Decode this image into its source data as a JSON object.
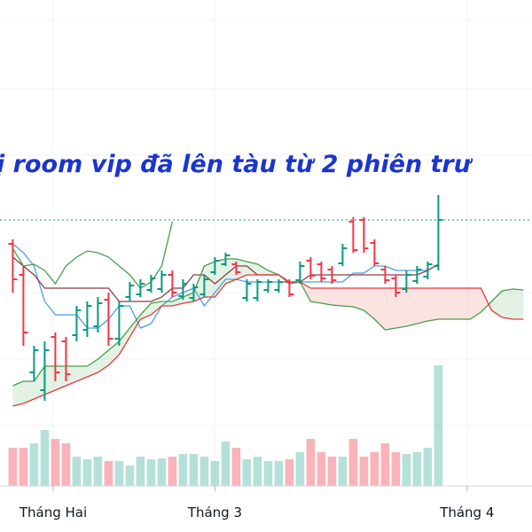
{
  "chart_data": {
    "type": "ohlc",
    "annotation": "ị room vip đã lên tàu từ 2 phiên trư",
    "xlim": [
      -1.2,
      48.8
    ],
    "xticks": [
      {
        "value": 3.8,
        "label": "Tháng Hai"
      },
      {
        "value": 19,
        "label": "Tháng 3"
      },
      {
        "value": 42.7,
        "label": "Tháng 4"
      }
    ],
    "ylim": [
      0,
      600
    ],
    "y2lim": [
      0,
      548
    ],
    "up_color": "#089981",
    "down_color": "#f23645",
    "price_line": 352,
    "price_line_color": "#089981",
    "open": [
      325,
      290,
      180,
      160,
      220,
      215,
      222,
      228,
      232,
      262,
      218,
      265,
      268,
      273,
      274,
      290,
      266,
      264,
      268,
      293,
      302,
      302,
      264,
      264,
      273,
      273,
      282,
      284,
      306,
      302,
      296,
      303,
      350,
      352,
      326,
      296,
      286,
      274,
      283,
      288,
      300
    ],
    "high": [
      330,
      300,
      210,
      215,
      225,
      220,
      255,
      260,
      265,
      270,
      260,
      282,
      285,
      290,
      295,
      295,
      285,
      280,
      290,
      310,
      315,
      305,
      285,
      285,
      285,
      285,
      285,
      305,
      310,
      305,
      300,
      325,
      355,
      355,
      330,
      300,
      290,
      295,
      300,
      305,
      380
    ],
    "low": [
      270,
      210,
      170,
      148,
      170,
      170,
      215,
      220,
      225,
      210,
      210,
      260,
      265,
      270,
      270,
      265,
      262,
      260,
      265,
      290,
      300,
      290,
      260,
      260,
      270,
      270,
      265,
      280,
      285,
      282,
      280,
      300,
      315,
      315,
      300,
      280,
      265,
      270,
      280,
      285,
      295
    ],
    "close": [
      285,
      225,
      205,
      205,
      180,
      178,
      250,
      255,
      258,
      218,
      255,
      278,
      280,
      286,
      290,
      270,
      280,
      276,
      285,
      306,
      312,
      293,
      280,
      282,
      282,
      282,
      268,
      300,
      289,
      286,
      284,
      320,
      318,
      320,
      303,
      284,
      270,
      290,
      296,
      302,
      352
    ],
    "volume": [
      43,
      43,
      48,
      63,
      53,
      48,
      33,
      30,
      33,
      28,
      28,
      23,
      33,
      30,
      31,
      33,
      36,
      36,
      33,
      28,
      50,
      43,
      30,
      33,
      28,
      28,
      30,
      38,
      53,
      38,
      33,
      33,
      53,
      33,
      38,
      48,
      38,
      36,
      38,
      43,
      136
    ],
    "series": [
      {
        "color": "#4a9fe0",
        "values": [
          325,
          315,
          300,
          260,
          245,
          245,
          245,
          230,
          230,
          240,
          255,
          255,
          230,
          235,
          255,
          265,
          270,
          275,
          255,
          270,
          285,
          285,
          282,
          282,
          282,
          282,
          282,
          282,
          282,
          282,
          282,
          282,
          292,
          292,
          300,
          300,
          295,
          295,
          295,
          295,
          302
        ]
      },
      {
        "color": "#8e3b46",
        "values": [
          310,
          300,
          290,
          275,
          275,
          275,
          275,
          275,
          275,
          275,
          260,
          260,
          260,
          260,
          265,
          275,
          275,
          290,
          290,
          280,
          290,
          300,
          300,
          290,
          290,
          290,
          282,
          282,
          290,
          290,
          290,
          290,
          290,
          290,
          290,
          290,
          290,
          290,
          290,
          295,
          302
        ]
      },
      {
        "color": "#43a047",
        "values": [
          165,
          170,
          170,
          187,
          187,
          187,
          187,
          187,
          195,
          205,
          215,
          230,
          245,
          258,
          260,
          260,
          265,
          270,
          300,
          305,
          308,
          308,
          305,
          302,
          295,
          290,
          280,
          282,
          260,
          258,
          256,
          255,
          254,
          250,
          240,
          228,
          230,
          232,
          235,
          238,
          240,
          240,
          240,
          240,
          248,
          260,
          272,
          274,
          273
        ]
      },
      {
        "color": "#e53935",
        "values": [
          142,
          145,
          150,
          155,
          160,
          165,
          170,
          175,
          180,
          188,
          200,
          220,
          240,
          245,
          255,
          255,
          258,
          260,
          265,
          265,
          280,
          285,
          290,
          290,
          290,
          290,
          282,
          282,
          275,
          275,
          275,
          275,
          275,
          275,
          275,
          275,
          275,
          275,
          275,
          275,
          275,
          275,
          275,
          275,
          275,
          250,
          242,
          240,
          240
        ]
      },
      {
        "color": "#43a047",
        "values": [
          320,
          300,
          302,
          295,
          280,
          300,
          310,
          317,
          315,
          310,
          300,
          290,
          275,
          282,
          300,
          350
        ]
      }
    ],
    "cloud_up_color": "#43a047",
    "cloud_down_color": "#e53935"
  }
}
